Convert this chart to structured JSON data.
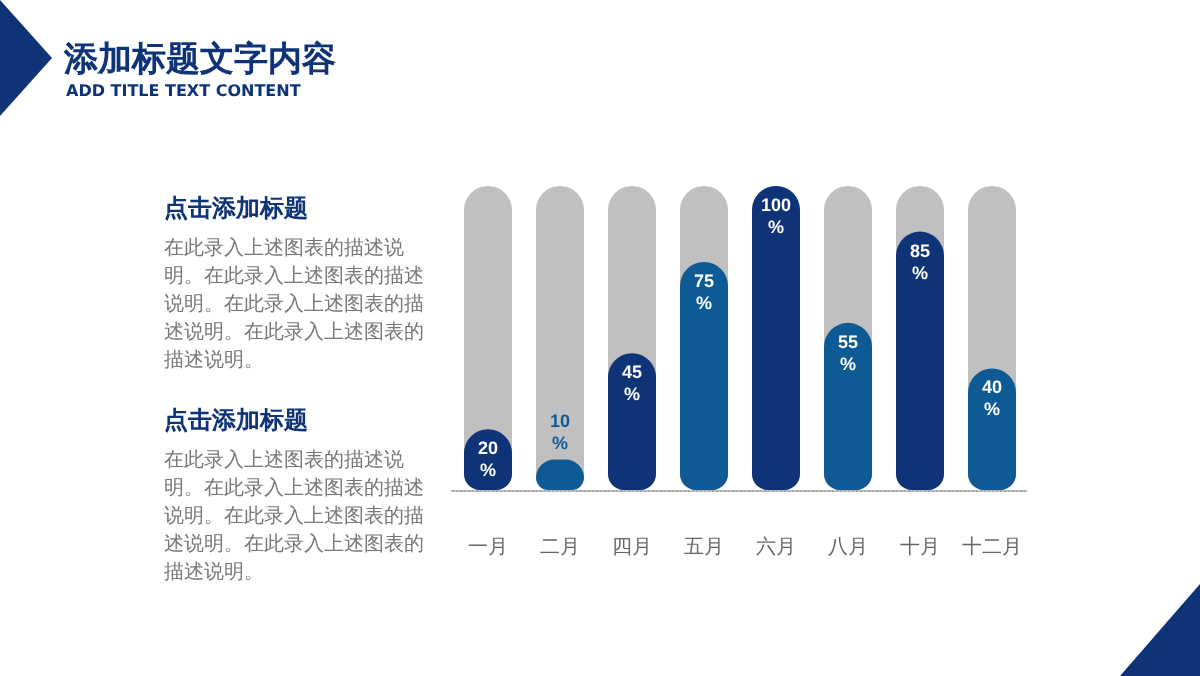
{
  "chart_data": {
    "type": "bar",
    "title": "添加标题文字内容",
    "subtitle": "ADD TITLE TEXT CONTENT",
    "categories": [
      "一月",
      "二月",
      "四月",
      "五月",
      "六月",
      "八月",
      "十月",
      "十二月"
    ],
    "values": [
      20,
      10,
      45,
      75,
      100,
      55,
      85,
      40
    ],
    "colors": [
      "#0f3377",
      "#0d5a94",
      "#0f3377",
      "#0d5a94",
      "#0f3377",
      "#0d5a94",
      "#0f3377",
      "#0d5a94"
    ],
    "value_labels": [
      "20%",
      "10%",
      "45%",
      "75%",
      "100%",
      "55%",
      "85%",
      "40%"
    ],
    "annotations": [
      "点击添加标题",
      "在此录入上述图表的描述说明。在此录入上述图表的描述说明。在此录入上述图表的描述说明。在此录入上述图表的描述说明。",
      "点击添加标题",
      "在此录入上述图表的描述说明。在此录入上述图表的描述说明。在此录入上述图表的描述说明。在此录入上述图表的描述说明。"
    ],
    "grid": false
  }
}
